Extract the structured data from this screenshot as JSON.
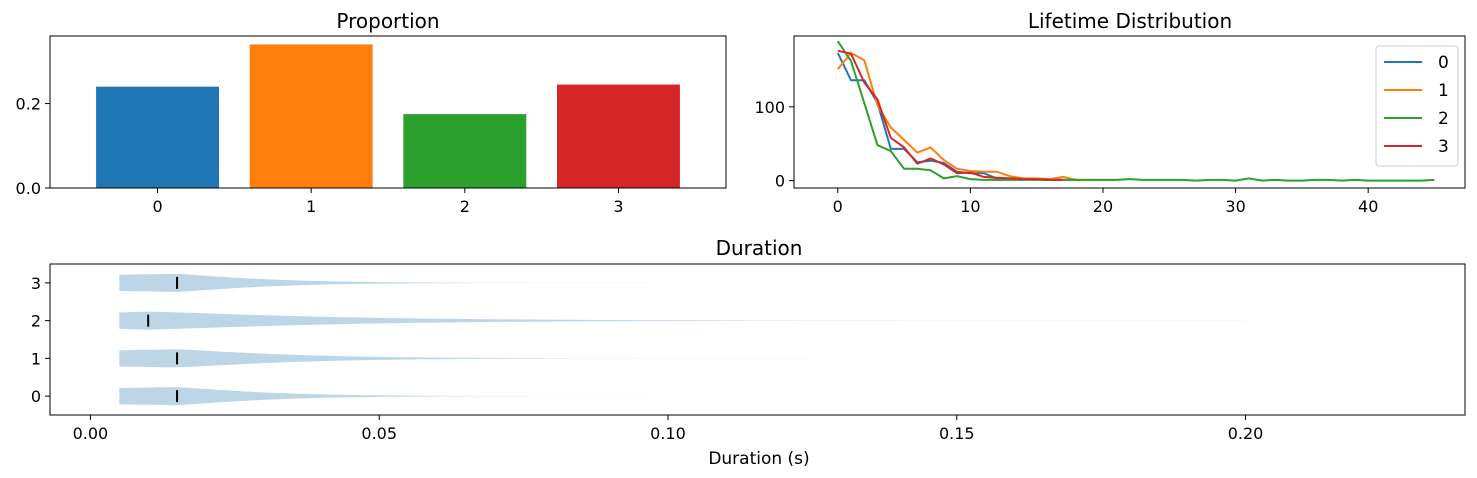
{
  "colors": [
    "#1f77b4",
    "#ff7f0e",
    "#2ca02c",
    "#d62728"
  ],
  "violin_color": "#a6c8e0",
  "chart_data": [
    {
      "id": "proportion",
      "type": "bar",
      "title": "Proportion",
      "categories": [
        "0",
        "1",
        "2",
        "3"
      ],
      "values": [
        0.24,
        0.34,
        0.175,
        0.245
      ],
      "ylim": [
        0,
        0.36
      ],
      "yticks": [
        0.0,
        0.2
      ],
      "ytick_labels": [
        "0.0",
        "0.2"
      ]
    },
    {
      "id": "lifetime",
      "type": "line",
      "title": "Lifetime Distribution",
      "xlim": [
        -3.3,
        47.3
      ],
      "ylim": [
        -10,
        196
      ],
      "xticks": [
        0,
        10,
        20,
        30,
        40
      ],
      "xtick_labels": [
        "0",
        "10",
        "20",
        "30",
        "40"
      ],
      "yticks": [
        0,
        100
      ],
      "ytick_labels": [
        "0",
        "100"
      ],
      "legend_position": "top-right",
      "series": [
        {
          "name": "0",
          "x": [
            0,
            1,
            2,
            3,
            4,
            5,
            6,
            7,
            8,
            9,
            10,
            11,
            12,
            13,
            14,
            15,
            16,
            17,
            18
          ],
          "y": [
            173,
            136,
            136,
            105,
            43,
            43,
            25,
            27,
            24,
            12,
            10,
            10,
            3,
            3,
            2,
            2,
            1,
            1,
            1
          ]
        },
        {
          "name": "1",
          "x": [
            0,
            1,
            2,
            3,
            4,
            5,
            6,
            7,
            8,
            9,
            10,
            11,
            12,
            13,
            14,
            15,
            16,
            17,
            18,
            19,
            20,
            21
          ],
          "y": [
            151,
            173,
            163,
            102,
            72,
            55,
            38,
            45,
            28,
            16,
            13,
            12,
            12,
            6,
            3,
            3,
            2,
            5,
            1,
            1,
            1,
            1
          ]
        },
        {
          "name": "2",
          "x": [
            0,
            1,
            2,
            3,
            4,
            5,
            6,
            7,
            8,
            9,
            10,
            11,
            12,
            13,
            14,
            15,
            16,
            17,
            18,
            19,
            20,
            21,
            22,
            23,
            24,
            25,
            26,
            27,
            28,
            29,
            30,
            31,
            32,
            33,
            34,
            35,
            36,
            37,
            38,
            39,
            40,
            41,
            42,
            43,
            44,
            45
          ],
          "y": [
            189,
            162,
            105,
            48,
            40,
            16,
            16,
            14,
            3,
            6,
            2,
            1,
            1,
            1,
            1,
            1,
            1,
            1,
            1,
            1,
            1,
            1,
            2,
            1,
            1,
            1,
            1,
            0,
            1,
            1,
            0,
            3,
            0,
            1,
            0,
            0,
            1,
            1,
            0,
            1,
            0,
            0,
            0,
            0,
            0,
            1
          ]
        },
        {
          "name": "3",
          "x": [
            0,
            1,
            2,
            3,
            4,
            5,
            6,
            7,
            8,
            9,
            10,
            11,
            12,
            13,
            14,
            15,
            16,
            17
          ],
          "y": [
            176,
            172,
            133,
            110,
            58,
            45,
            23,
            30,
            22,
            10,
            11,
            5,
            4,
            3,
            2,
            2,
            1,
            1
          ]
        }
      ]
    },
    {
      "id": "duration",
      "type": "violin",
      "title": "Duration",
      "xlabel": "Duration (s)",
      "xlim": [
        -0.007,
        0.238
      ],
      "xticks": [
        0.0,
        0.05,
        0.1,
        0.15,
        0.2
      ],
      "xtick_labels": [
        "0.00",
        "0.05",
        "0.10",
        "0.15",
        "0.20"
      ],
      "categories": [
        "0",
        "1",
        "2",
        "3"
      ],
      "min": [
        0.005,
        0.005,
        0.005,
        0.005
      ],
      "max": [
        0.097,
        0.125,
        0.2,
        0.097
      ],
      "median": [
        0.015,
        0.015,
        0.01,
        0.015
      ]
    }
  ]
}
